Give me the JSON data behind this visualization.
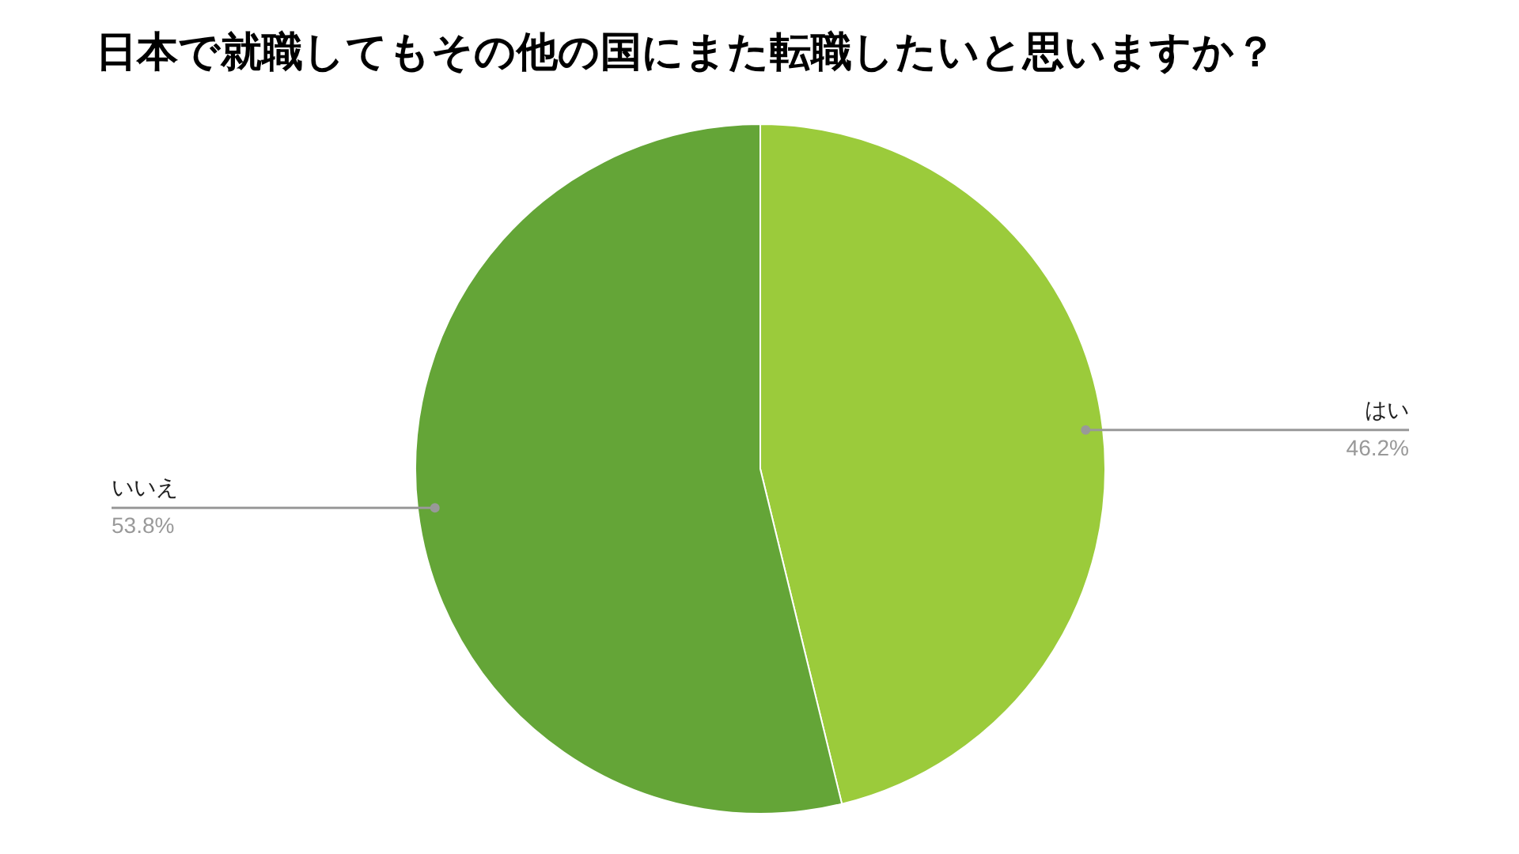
{
  "chart_data": {
    "type": "pie",
    "title": "日本で就職してもその他の国にまた転職したいと思いますか？",
    "categories": [
      "はい",
      "いいえ"
    ],
    "values": [
      46.2,
      53.8
    ],
    "value_labels": [
      "46.2%",
      "53.8%"
    ],
    "colors": [
      "#9bcb3b",
      "#64a537"
    ]
  }
}
